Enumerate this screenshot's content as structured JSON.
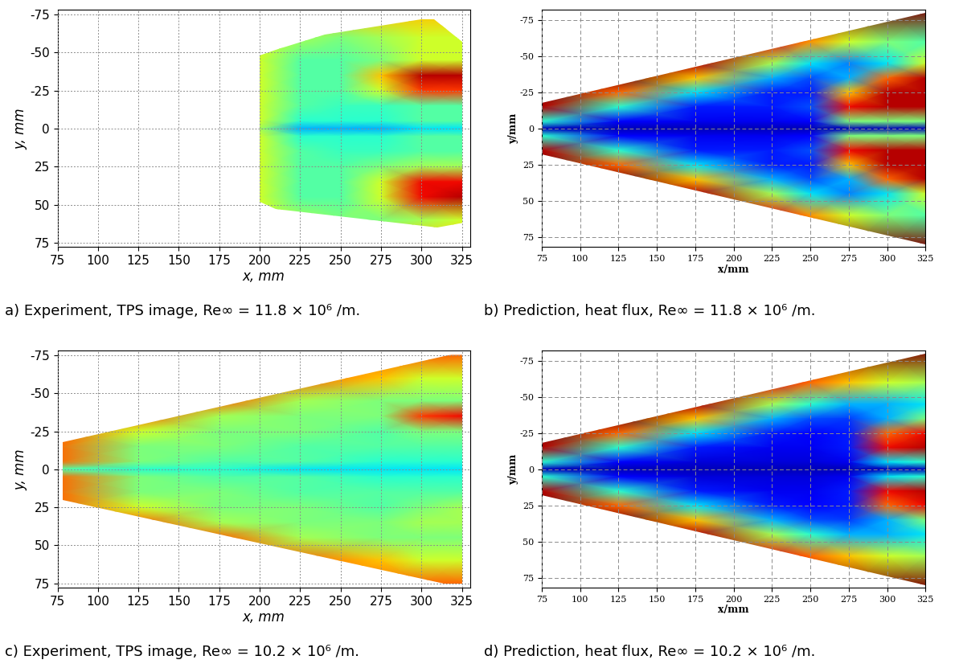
{
  "chart_data": [
    {
      "type": "heatmap",
      "title": "a) Experiment, TPS image, Re∞ = 11.8 × 10⁶ /m.",
      "x_label": "x, mm",
      "y_label": "y, mm",
      "xlim": [
        75,
        330
      ],
      "ylim": [
        78,
        -78
      ],
      "xticks": [
        75,
        100,
        125,
        150,
        175,
        200,
        225,
        250,
        275,
        300,
        325
      ],
      "yticks": [
        -75,
        -50,
        -25,
        0,
        25,
        50,
        75
      ],
      "grid": true,
      "vlim": [
        0,
        1
      ],
      "outline": [
        [
          200,
          -48
        ],
        [
          210,
          -52
        ],
        [
          240,
          -62
        ],
        [
          300,
          -72
        ],
        [
          308,
          -72
        ],
        [
          325,
          -57
        ],
        [
          326,
          62
        ],
        [
          310,
          65
        ],
        [
          210,
          53
        ],
        [
          200,
          48
        ]
      ],
      "cell_x": [
        200,
        225,
        250,
        275,
        300,
        325
      ],
      "cell_y": [
        -75,
        -60,
        -45,
        -35,
        -25,
        -15,
        -5,
        0,
        5,
        15,
        25,
        35,
        45,
        60,
        75
      ],
      "cells": [
        [
          0.7,
          0.7,
          0.7,
          0.7,
          0.7,
          0.7
        ],
        [
          0.6,
          0.55,
          0.5,
          0.55,
          0.6,
          0.6
        ],
        [
          0.6,
          0.45,
          0.45,
          0.5,
          0.6,
          0.6
        ],
        [
          0.6,
          0.45,
          0.45,
          0.7,
          0.95,
          0.95
        ],
        [
          0.6,
          0.45,
          0.45,
          0.6,
          0.85,
          0.85
        ],
        [
          0.6,
          0.45,
          0.42,
          0.42,
          0.45,
          0.45
        ],
        [
          0.6,
          0.4,
          0.4,
          0.4,
          0.45,
          0.45
        ],
        [
          0.55,
          0.3,
          0.3,
          0.3,
          0.35,
          0.35
        ],
        [
          0.6,
          0.4,
          0.4,
          0.4,
          0.45,
          0.45
        ],
        [
          0.6,
          0.45,
          0.42,
          0.42,
          0.45,
          0.45
        ],
        [
          0.6,
          0.45,
          0.45,
          0.5,
          0.55,
          0.55
        ],
        [
          0.6,
          0.45,
          0.45,
          0.6,
          0.9,
          0.9
        ],
        [
          0.6,
          0.45,
          0.45,
          0.6,
          0.9,
          0.95
        ],
        [
          0.6,
          0.55,
          0.5,
          0.5,
          0.55,
          0.6
        ],
        [
          0.7,
          0.7,
          0.7,
          0.7,
          0.7,
          0.7
        ]
      ]
    },
    {
      "type": "heatmap",
      "title": "b) Prediction, heat flux, Re∞ = 11.8 × 10⁶ /m.",
      "x_label": "x/mm",
      "y_label": "y/mm",
      "xlim": [
        75,
        325
      ],
      "ylim": [
        82,
        -82
      ],
      "xticks": [
        75,
        100,
        125,
        150,
        175,
        200,
        225,
        250,
        275,
        300,
        325
      ],
      "yticks": [
        -75,
        -50,
        -25,
        0,
        25,
        50,
        75
      ],
      "grid": true,
      "vlim": [
        0,
        1
      ],
      "outline": [
        [
          75,
          -18
        ],
        [
          325,
          -80
        ],
        [
          325,
          80
        ],
        [
          75,
          18
        ]
      ],
      "cell_x": [
        75,
        125,
        175,
        225,
        250,
        275,
        300,
        325
      ],
      "cell_y": [
        -82,
        -60,
        -45,
        -35,
        -25,
        -15,
        -5,
        0,
        5,
        15,
        25,
        35,
        45,
        60,
        82
      ],
      "cells": [
        [
          1,
          1,
          1,
          1,
          1,
          1,
          1,
          1
        ],
        [
          1,
          1,
          1,
          0.9,
          0.75,
          0.6,
          0.5,
          0.45
        ],
        [
          1,
          1,
          0.95,
          0.55,
          0.35,
          0.25,
          0.35,
          0.6
        ],
        [
          1,
          1,
          0.7,
          0.3,
          0.2,
          0.3,
          0.8,
          0.95
        ],
        [
          1,
          0.8,
          0.35,
          0.15,
          0.15,
          0.7,
          0.95,
          0.95
        ],
        [
          0.95,
          0.4,
          0.15,
          0.15,
          0.2,
          0.9,
          0.95,
          0.95
        ],
        [
          0.4,
          0.12,
          0.1,
          0.1,
          0.12,
          0.5,
          0.5,
          0.5
        ],
        [
          0.05,
          0.05,
          0.05,
          0.05,
          0.05,
          0.05,
          0.05,
          0.05
        ],
        [
          0.4,
          0.12,
          0.1,
          0.1,
          0.12,
          0.5,
          0.5,
          0.5
        ],
        [
          0.95,
          0.4,
          0.15,
          0.15,
          0.2,
          0.9,
          0.95,
          0.95
        ],
        [
          1,
          0.8,
          0.35,
          0.15,
          0.15,
          0.7,
          0.95,
          0.95
        ],
        [
          1,
          1,
          0.7,
          0.3,
          0.2,
          0.3,
          0.8,
          0.95
        ],
        [
          1,
          1,
          0.95,
          0.55,
          0.35,
          0.25,
          0.35,
          0.6
        ],
        [
          1,
          1,
          1,
          0.9,
          0.75,
          0.6,
          0.5,
          0.45
        ],
        [
          1,
          1,
          1,
          1,
          1,
          1,
          1,
          1
        ]
      ]
    },
    {
      "type": "heatmap",
      "title": "c) Experiment, TPS image, Re∞ = 10.2 × 10⁶ /m.",
      "x_label": "x, mm",
      "y_label": "y, mm",
      "xlim": [
        75,
        330
      ],
      "ylim": [
        78,
        -78
      ],
      "xticks": [
        75,
        100,
        125,
        150,
        175,
        200,
        225,
        250,
        275,
        300,
        325
      ],
      "yticks": [
        -75,
        -50,
        -25,
        0,
        25,
        50,
        75
      ],
      "grid": true,
      "vlim": [
        0,
        1
      ],
      "outline": [
        [
          78,
          -18
        ],
        [
          325,
          -77
        ],
        [
          328,
          -72
        ],
        [
          328,
          75
        ],
        [
          325,
          78
        ],
        [
          78,
          20
        ]
      ],
      "cell_x": [
        75,
        125,
        175,
        225,
        275,
        300,
        325
      ],
      "cell_y": [
        -75,
        -60,
        -45,
        -35,
        -25,
        -15,
        -5,
        0,
        5,
        15,
        25,
        35,
        45,
        60,
        75
      ],
      "cells": [
        [
          0.8,
          0.8,
          0.8,
          0.8,
          0.8,
          0.8,
          0.8
        ],
        [
          0.8,
          0.8,
          0.8,
          0.8,
          0.7,
          0.6,
          0.6
        ],
        [
          0.8,
          0.8,
          0.8,
          0.55,
          0.5,
          0.5,
          0.5
        ],
        [
          0.8,
          0.8,
          0.55,
          0.5,
          0.5,
          0.85,
          0.9
        ],
        [
          0.8,
          0.6,
          0.5,
          0.5,
          0.45,
          0.5,
          0.5
        ],
        [
          0.8,
          0.5,
          0.5,
          0.45,
          0.45,
          0.45,
          0.45
        ],
        [
          0.8,
          0.5,
          0.45,
          0.45,
          0.4,
          0.4,
          0.4
        ],
        [
          0.45,
          0.4,
          0.4,
          0.35,
          0.35,
          0.35,
          0.35
        ],
        [
          0.8,
          0.5,
          0.45,
          0.45,
          0.4,
          0.4,
          0.4
        ],
        [
          0.8,
          0.5,
          0.5,
          0.45,
          0.45,
          0.45,
          0.45
        ],
        [
          0.8,
          0.6,
          0.5,
          0.5,
          0.45,
          0.5,
          0.55
        ],
        [
          0.8,
          0.8,
          0.55,
          0.5,
          0.5,
          0.55,
          0.55
        ],
        [
          0.8,
          0.8,
          0.8,
          0.55,
          0.5,
          0.5,
          0.5
        ],
        [
          0.8,
          0.8,
          0.8,
          0.8,
          0.7,
          0.6,
          0.6
        ],
        [
          0.8,
          0.8,
          0.8,
          0.8,
          0.8,
          0.8,
          0.8
        ]
      ]
    },
    {
      "type": "heatmap",
      "title": "d) Prediction, heat flux, Re∞ = 10.2 × 10⁶ /m.",
      "x_label": "x/mm",
      "y_label": "y/mm",
      "xlim": [
        75,
        325
      ],
      "ylim": [
        82,
        -82
      ],
      "xticks": [
        75,
        100,
        125,
        150,
        175,
        200,
        225,
        250,
        275,
        300,
        325
      ],
      "yticks": [
        -75,
        -50,
        -25,
        0,
        25,
        50,
        75
      ],
      "grid": true,
      "vlim": [
        0,
        1
      ],
      "outline": [
        [
          75,
          -18
        ],
        [
          325,
          -80
        ],
        [
          325,
          80
        ],
        [
          75,
          18
        ]
      ],
      "cell_x": [
        75,
        125,
        175,
        225,
        250,
        275,
        300,
        325
      ],
      "cell_y": [
        -82,
        -60,
        -45,
        -35,
        -25,
        -15,
        -5,
        0,
        5,
        15,
        25,
        35,
        45,
        60,
        82
      ],
      "cells": [
        [
          1,
          1,
          1,
          1,
          1,
          1,
          1,
          1
        ],
        [
          1,
          1,
          1,
          0.9,
          0.8,
          0.7,
          0.6,
          0.55
        ],
        [
          1,
          1,
          0.95,
          0.55,
          0.4,
          0.3,
          0.3,
          0.35
        ],
        [
          1,
          1,
          0.7,
          0.3,
          0.2,
          0.18,
          0.3,
          0.5
        ],
        [
          1,
          0.8,
          0.35,
          0.15,
          0.12,
          0.15,
          0.8,
          0.9
        ],
        [
          0.95,
          0.4,
          0.15,
          0.1,
          0.1,
          0.15,
          0.9,
          0.95
        ],
        [
          0.4,
          0.12,
          0.08,
          0.08,
          0.08,
          0.1,
          0.35,
          0.4
        ],
        [
          0.05,
          0.05,
          0.05,
          0.05,
          0.05,
          0.05,
          0.05,
          0.05
        ],
        [
          0.4,
          0.12,
          0.08,
          0.08,
          0.08,
          0.1,
          0.35,
          0.4
        ],
        [
          0.95,
          0.4,
          0.15,
          0.1,
          0.1,
          0.15,
          0.9,
          0.95
        ],
        [
          1,
          0.8,
          0.35,
          0.15,
          0.12,
          0.15,
          0.8,
          0.9
        ],
        [
          1,
          1,
          0.7,
          0.3,
          0.2,
          0.18,
          0.3,
          0.5
        ],
        [
          1,
          1,
          0.95,
          0.55,
          0.4,
          0.3,
          0.3,
          0.35
        ],
        [
          1,
          1,
          1,
          0.9,
          0.8,
          0.7,
          0.6,
          0.55
        ],
        [
          1,
          1,
          1,
          1,
          1,
          1,
          1,
          1
        ]
      ]
    }
  ]
}
